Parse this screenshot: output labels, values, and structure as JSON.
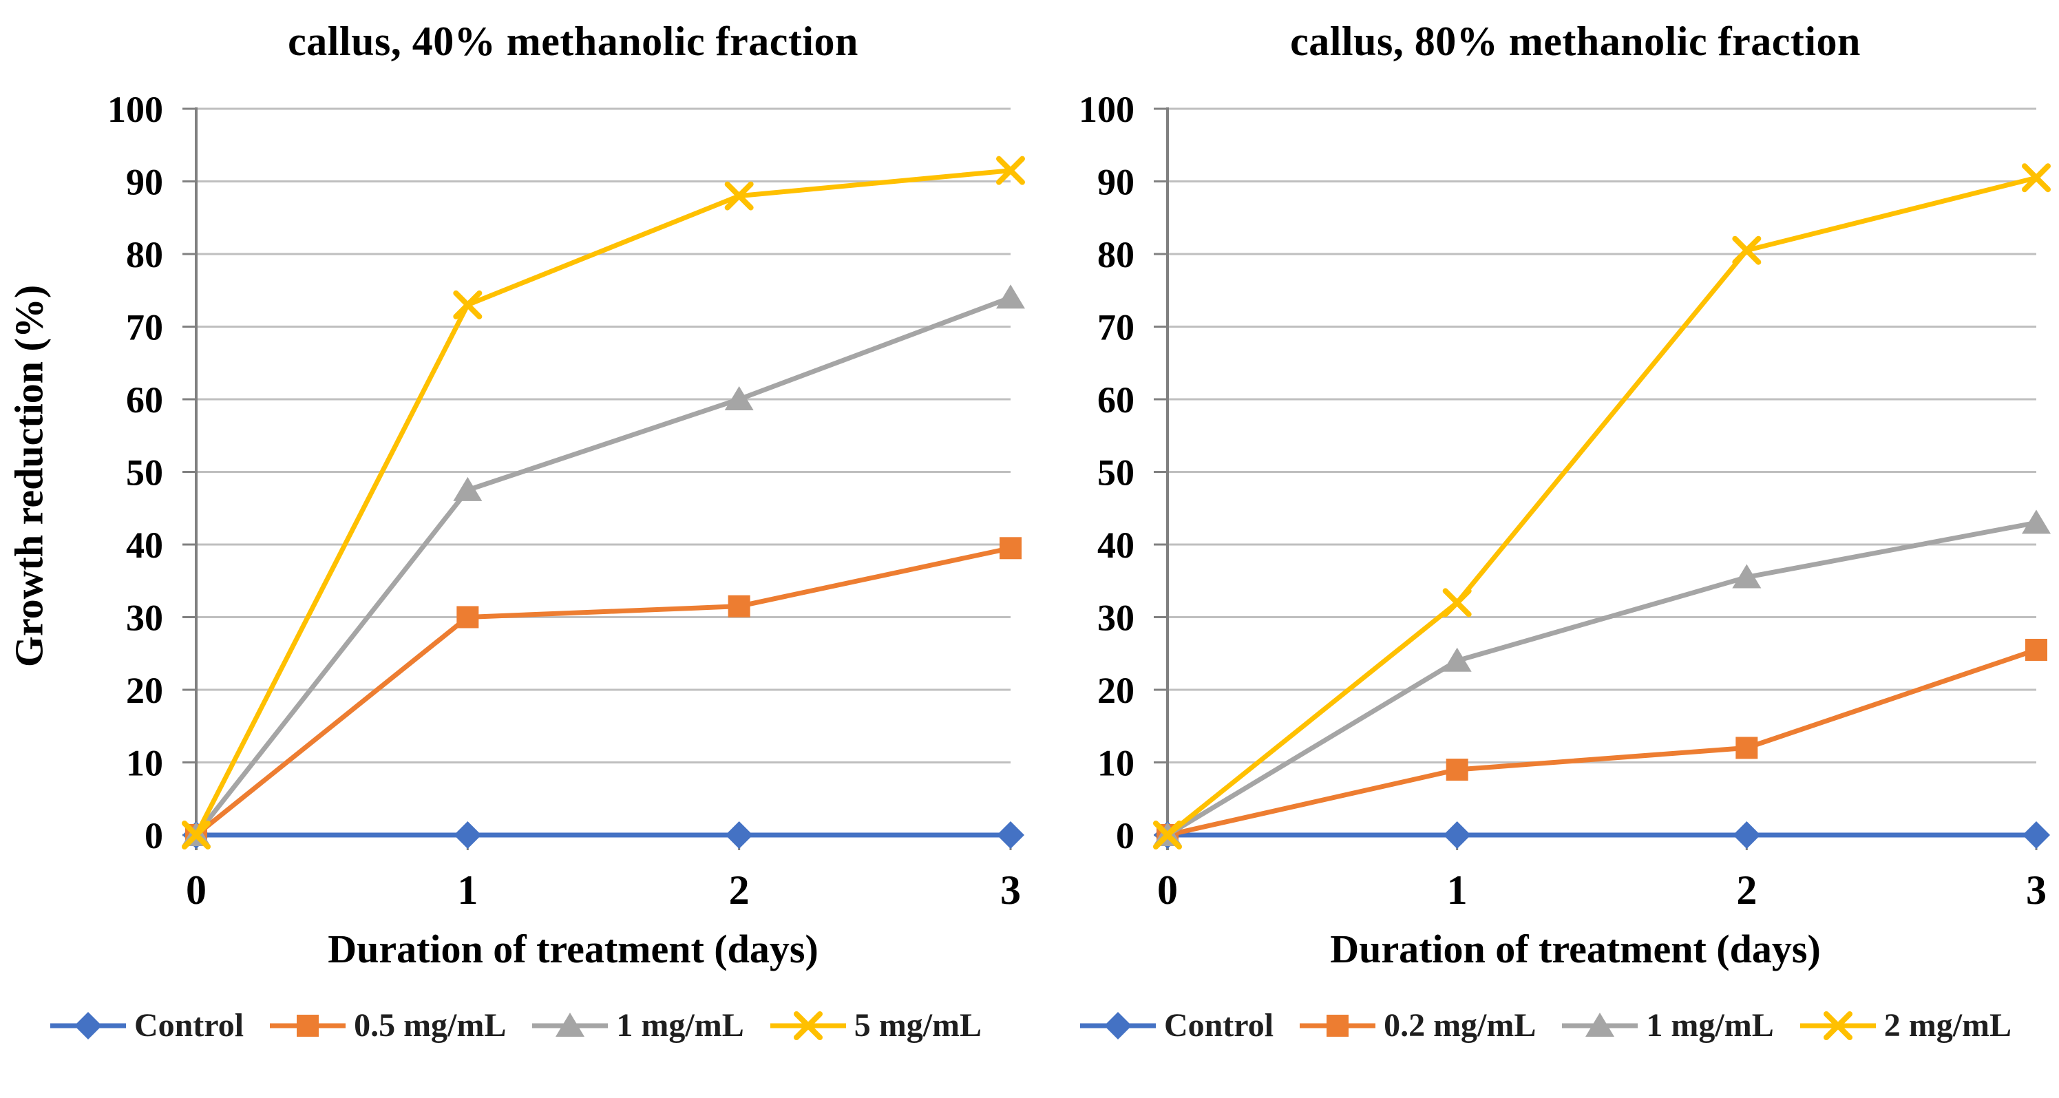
{
  "figure": {
    "background": "#FFFFFF"
  },
  "style": {
    "grid_color": "#BFBFBF",
    "axis_color": "#808080",
    "text_color": "#000000",
    "legend_text_color": "#1F1F1F"
  },
  "chart_data": [
    {
      "type": "line",
      "title": "callus, 40% methanolic fraction",
      "xlabel": "Duration of treatment (days)",
      "ylabel": "Growth reduction (%)",
      "x": [
        0,
        1,
        2,
        3
      ],
      "x_tick_labels": [
        "0",
        "1",
        "2",
        "3"
      ],
      "ylim": [
        0,
        100
      ],
      "y_tick_step": 10,
      "grid": "horizontal",
      "legend_position": "bottom",
      "series": [
        {
          "name": "Control",
          "color": "#4472C4",
          "marker": "diamond",
          "values": [
            0,
            0,
            0,
            0
          ]
        },
        {
          "name": "0.5 mg/mL",
          "color": "#ED7D31",
          "marker": "square",
          "values": [
            0,
            30,
            31.5,
            39.5
          ]
        },
        {
          "name": "1 mg/mL",
          "color": "#A5A5A5",
          "marker": "triangle",
          "values": [
            0,
            47.5,
            60,
            74
          ]
        },
        {
          "name": "5 mg/mL",
          "color": "#FFC000",
          "marker": "x",
          "values": [
            0,
            73,
            88,
            91.5
          ]
        }
      ]
    },
    {
      "type": "line",
      "title": "callus, 80% methanolic fraction",
      "xlabel": "Duration of treatment (days)",
      "ylabel": "",
      "x": [
        0,
        1,
        2,
        3
      ],
      "x_tick_labels": [
        "0",
        "1",
        "2",
        "3"
      ],
      "ylim": [
        0,
        100
      ],
      "y_tick_step": 10,
      "grid": "horizontal",
      "legend_position": "bottom",
      "series": [
        {
          "name": "Control",
          "color": "#4472C4",
          "marker": "diamond",
          "values": [
            0,
            0,
            0,
            0
          ]
        },
        {
          "name": "0.2 mg/mL",
          "color": "#ED7D31",
          "marker": "square",
          "values": [
            0,
            9,
            12,
            25.5
          ]
        },
        {
          "name": "1 mg/mL",
          "color": "#A5A5A5",
          "marker": "triangle",
          "values": [
            0,
            24,
            35.5,
            43
          ]
        },
        {
          "name": "2 mg/mL",
          "color": "#FFC000",
          "marker": "x",
          "values": [
            0,
            32,
            80.5,
            90.5
          ]
        }
      ]
    }
  ]
}
